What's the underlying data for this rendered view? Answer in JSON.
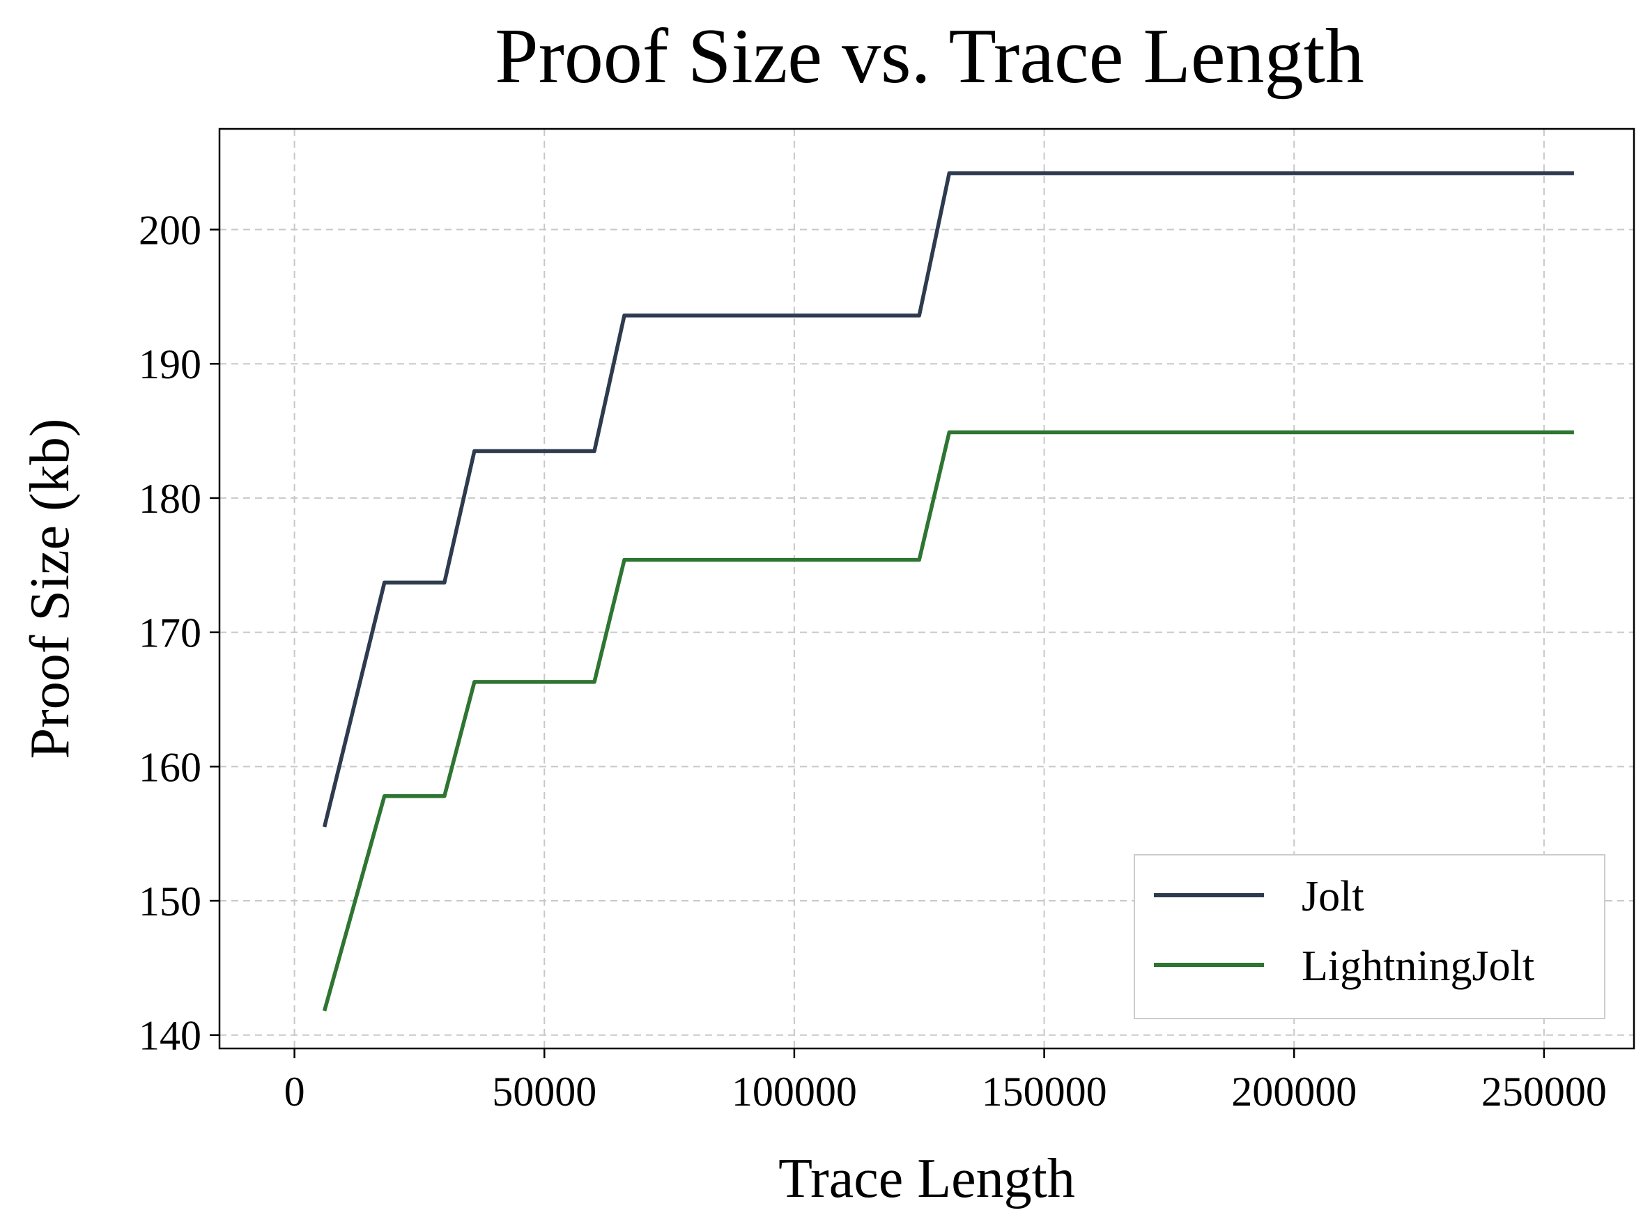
{
  "chart_data": {
    "type": "line",
    "title": "Proof Size vs. Trace Length",
    "xlabel": "Trace Length",
    "ylabel": "Proof Size (kb)",
    "xlim": [
      -15000,
      268000
    ],
    "ylim": [
      139,
      207.5
    ],
    "xticks": [
      0,
      50000,
      100000,
      150000,
      200000,
      250000
    ],
    "yticks": [
      140,
      150,
      160,
      170,
      180,
      190,
      200
    ],
    "grid": true,
    "legend_position": "lower-right",
    "series": [
      {
        "name": "Jolt",
        "color": "#2e3b4e",
        "points": [
          [
            6000,
            155.5
          ],
          [
            18000,
            173.7
          ],
          [
            30000,
            173.7
          ],
          [
            36000,
            183.5
          ],
          [
            60000,
            183.5
          ],
          [
            66000,
            193.6
          ],
          [
            125000,
            193.6
          ],
          [
            131000,
            204.2
          ],
          [
            256000,
            204.2
          ]
        ]
      },
      {
        "name": "LightningJolt",
        "color": "#2e7531",
        "points": [
          [
            6000,
            141.8
          ],
          [
            18000,
            157.8
          ],
          [
            30000,
            157.8
          ],
          [
            36000,
            166.3
          ],
          [
            60000,
            166.3
          ],
          [
            66000,
            175.4
          ],
          [
            125000,
            175.4
          ],
          [
            131000,
            184.9
          ],
          [
            256000,
            184.9
          ]
        ]
      }
    ]
  }
}
